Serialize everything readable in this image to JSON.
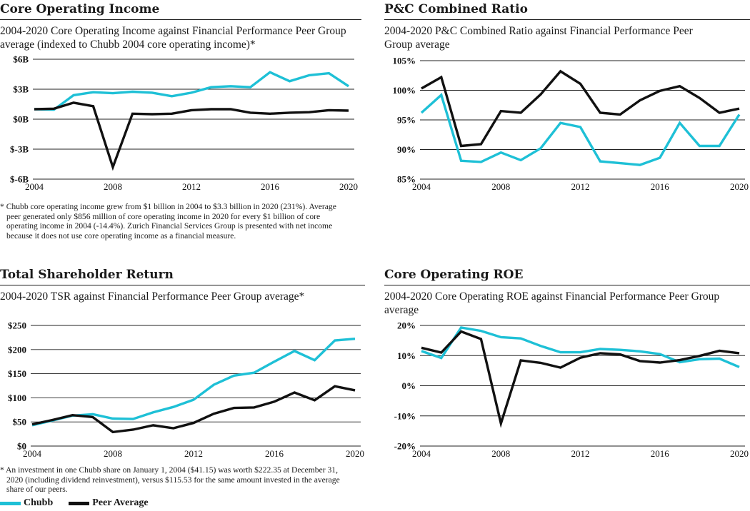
{
  "colors": {
    "chubb": "#1ec0d6",
    "peer": "#111111",
    "axis": "#222222"
  },
  "legend": {
    "chubb": "Chubb",
    "peer": "Peer Average"
  },
  "panels": {
    "coi": {
      "title": "Core Operating Income",
      "subtitle": "2004-2020 Core Operating Income against Financial Performance Peer Group average (indexed to Chubb 2004 core operating income)*",
      "footnote": "* Chubb core operating income grew from $1 billion in 2004 to $3.3 billion in 2020 (231%). Average peer generated only $856 million of core operating income in 2020 for every $1 billion of core operating income in 2004 (-14.4%). Zurich Financial Services Group is presented with net income because it does not use core operating income as a financial measure."
    },
    "pc": {
      "title": "P&C Combined Ratio",
      "subtitle": "2004-2020 P&C Combined Ratio against Financial Performance Peer Group average"
    },
    "tsr": {
      "title": "Total Shareholder Return",
      "subtitle": "2004-2020 TSR against Financial Performance Peer Group average*",
      "footnote": "* An investment in one Chubb share on January 1, 2004 ($41.15) was worth $222.35 at December 31, 2020 (including dividend reinvestment), versus $115.53 for the same amount invested in the average share of our peers."
    },
    "roe": {
      "title": "Core Operating ROE",
      "subtitle": "2004-2020 Core Operating ROE against Financial Performance Peer Group average"
    }
  },
  "chart_data": [
    {
      "id": "coi",
      "type": "line",
      "title": "Core Operating Income",
      "x": [
        2004,
        2005,
        2006,
        2007,
        2008,
        2009,
        2010,
        2011,
        2012,
        2013,
        2014,
        2015,
        2016,
        2017,
        2018,
        2019,
        2020
      ],
      "xticks": [
        2004,
        2008,
        2012,
        2016,
        2020
      ],
      "xtick_labels": [
        "2004",
        "2008",
        "2012",
        "2016",
        "2020"
      ],
      "xlim": [
        2004,
        2020
      ],
      "ylim": [
        -6,
        6
      ],
      "yticks": [
        6,
        3,
        0,
        -3,
        -6
      ],
      "ytick_labels": [
        "$6B",
        "$3B",
        "$0B",
        "$-3B",
        "$-6B"
      ],
      "series": [
        {
          "name": "Chubb",
          "color_key": "chubb",
          "values": [
            1.0,
            0.95,
            2.4,
            2.7,
            2.6,
            2.75,
            2.65,
            2.3,
            2.65,
            3.2,
            3.3,
            3.2,
            4.7,
            3.8,
            4.4,
            4.6,
            3.3
          ]
        },
        {
          "name": "Peer Average",
          "color_key": "peer",
          "values": [
            1.0,
            1.05,
            1.65,
            1.3,
            -4.8,
            0.55,
            0.5,
            0.55,
            0.9,
            1.0,
            1.0,
            0.65,
            0.55,
            0.65,
            0.7,
            0.9,
            0.86
          ]
        }
      ]
    },
    {
      "id": "pc",
      "type": "line",
      "title": "P&C Combined Ratio",
      "x": [
        2004,
        2005,
        2006,
        2007,
        2008,
        2009,
        2010,
        2011,
        2012,
        2013,
        2014,
        2015,
        2016,
        2017,
        2018,
        2019,
        2020
      ],
      "xticks": [
        2004,
        2008,
        2012,
        2016,
        2020
      ],
      "xtick_labels": [
        "2004",
        "2008",
        "2012",
        "2016",
        "2020"
      ],
      "xlim": [
        2004,
        2020
      ],
      "ylim": [
        85,
        105
      ],
      "yticks": [
        105,
        100,
        95,
        90,
        85
      ],
      "ytick_labels": [
        "105%",
        "100%",
        "95%",
        "90%",
        "85%"
      ],
      "series": [
        {
          "name": "Chubb",
          "color_key": "chubb",
          "values": [
            96.2,
            99.2,
            88.1,
            87.9,
            89.5,
            88.2,
            90.2,
            94.5,
            93.8,
            88.0,
            87.7,
            87.4,
            88.6,
            94.5,
            90.6,
            90.6,
            95.9
          ]
        },
        {
          "name": "Peer Average",
          "color_key": "peer",
          "values": [
            100.3,
            102.2,
            90.6,
            90.9,
            96.5,
            96.2,
            99.3,
            103.2,
            101.1,
            96.2,
            95.9,
            98.3,
            99.9,
            100.7,
            98.7,
            96.2,
            96.9
          ]
        }
      ]
    },
    {
      "id": "tsr",
      "type": "line",
      "title": "Total Shareholder Return",
      "x": [
        2004,
        2005,
        2006,
        2007,
        2008,
        2009,
        2010,
        2011,
        2012,
        2013,
        2014,
        2015,
        2016,
        2017,
        2018,
        2019,
        2020
      ],
      "xticks": [
        2004,
        2008,
        2012,
        2016,
        2020
      ],
      "xtick_labels": [
        "2004",
        "2008",
        "2012",
        "2016",
        "2020"
      ],
      "xlim": [
        2004,
        2020
      ],
      "ylim": [
        0,
        250
      ],
      "yticks": [
        250,
        200,
        150,
        100,
        50,
        0
      ],
      "ytick_labels": [
        "$250",
        "$200",
        "$150",
        "$100",
        "$50",
        "$0"
      ],
      "series": [
        {
          "name": "Chubb",
          "color_key": "chubb",
          "values": [
            43,
            53,
            63,
            66,
            57,
            56,
            70,
            81,
            96,
            127,
            146,
            152,
            175,
            197,
            178,
            219,
            222.35
          ]
        },
        {
          "name": "Peer Average",
          "color_key": "peer",
          "values": [
            45,
            54,
            64,
            60,
            29,
            34,
            43,
            37,
            48,
            67,
            79,
            80,
            92,
            111,
            95,
            124,
            115.53
          ]
        }
      ]
    },
    {
      "id": "roe",
      "type": "line",
      "title": "Core Operating ROE",
      "x": [
        2004,
        2005,
        2006,
        2007,
        2008,
        2009,
        2010,
        2011,
        2012,
        2013,
        2014,
        2015,
        2016,
        2017,
        2018,
        2019,
        2020
      ],
      "xticks": [
        2004,
        2008,
        2012,
        2016,
        2020
      ],
      "xtick_labels": [
        "2004",
        "2008",
        "2012",
        "2016",
        "2020"
      ],
      "xlim": [
        2004,
        2020
      ],
      "ylim": [
        -20,
        20
      ],
      "yticks": [
        20,
        10,
        0,
        -10,
        -20
      ],
      "ytick_labels": [
        "20%",
        "10%",
        "0%",
        "-10%",
        "-20%"
      ],
      "series": [
        {
          "name": "Chubb",
          "color_key": "chubb",
          "values": [
            11.5,
            9.2,
            19.3,
            18.2,
            16.1,
            15.7,
            13.2,
            11.1,
            11.1,
            12.2,
            11.9,
            11.4,
            10.5,
            7.8,
            8.8,
            9.0,
            6.2
          ]
        },
        {
          "name": "Peer Average",
          "color_key": "peer",
          "values": [
            12.6,
            11.0,
            18.0,
            15.5,
            -12.5,
            8.4,
            7.6,
            6.0,
            9.3,
            10.8,
            10.4,
            8.2,
            7.7,
            8.5,
            9.9,
            11.6,
            10.8
          ]
        }
      ]
    }
  ]
}
